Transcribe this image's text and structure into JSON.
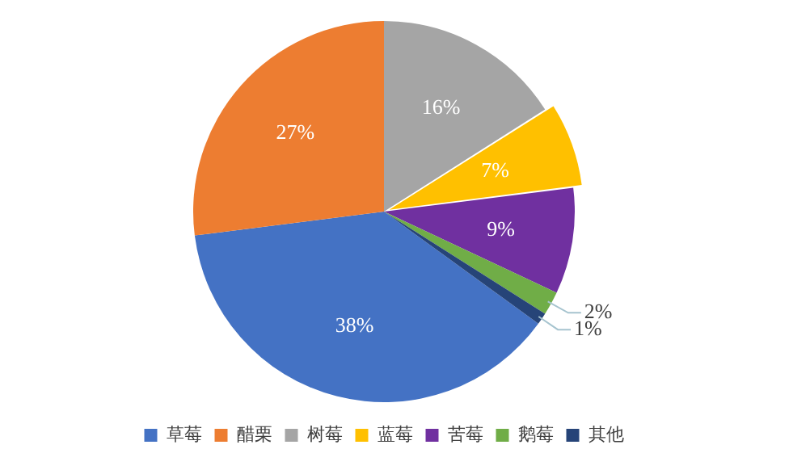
{
  "chart_data": {
    "type": "pie",
    "categories": [
      "草莓",
      "醋栗",
      "树莓",
      "蓝莓",
      "苦莓",
      "鹅莓",
      "其他"
    ],
    "values": [
      38,
      27,
      16,
      7,
      9,
      2,
      1
    ],
    "colors": [
      "#4472c4",
      "#ed7d31",
      "#a5a5a5",
      "#ffc000",
      "#7030a0",
      "#70ad47",
      "#264478"
    ],
    "value_labels": [
      "38%",
      "27%",
      "16%",
      "7%",
      "9%",
      "2%",
      "1%"
    ],
    "legend": "bottom"
  }
}
